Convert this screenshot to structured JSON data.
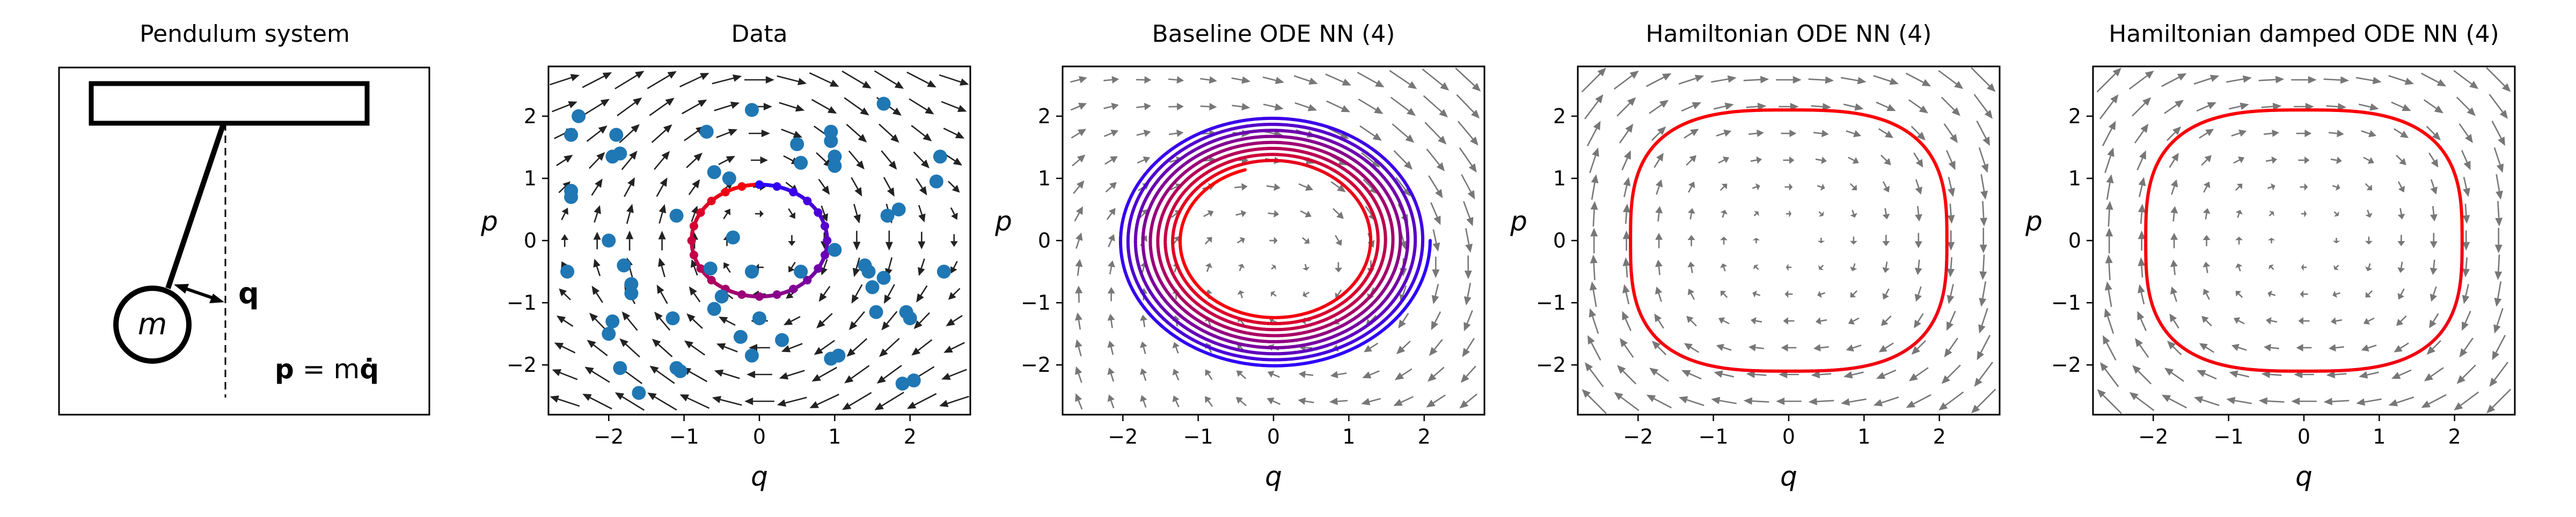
{
  "figure": {
    "pendulum": {
      "title": "Pendulum system",
      "mass_label": "m",
      "q_label": "q",
      "momentum_lhs": "p",
      "momentum_eq": " = m",
      "momentum_qdot": "q̇"
    }
  },
  "colors": {
    "data_points": "#1f77b4",
    "arrows_data": "#222222",
    "arrows_model": "#777777",
    "traj_start": "#2800ff",
    "traj_end": "#ff0000"
  },
  "chart_data": [
    {
      "type": "scatter",
      "title": "Data",
      "xlabel": "q",
      "ylabel": "p",
      "xlim": [
        -2.8,
        2.8
      ],
      "ylim": [
        -2.8,
        2.8
      ],
      "xticks": [
        -2,
        -1,
        0,
        1,
        2
      ],
      "yticks": [
        -2,
        -1,
        0,
        1,
        2
      ],
      "grid": false,
      "vector_field": "pendulum",
      "points": [
        [
          -2.5,
          1.7
        ],
        [
          -2.4,
          2.0
        ],
        [
          -2.5,
          0.8
        ],
        [
          -2.5,
          0.7
        ],
        [
          -1.95,
          1.35
        ],
        [
          -1.9,
          1.7
        ],
        [
          -1.85,
          1.4
        ],
        [
          -2.55,
          -0.5
        ],
        [
          -2.0,
          0.0
        ],
        [
          -1.8,
          -0.4
        ],
        [
          -1.7,
          -0.85
        ],
        [
          -1.7,
          -0.7
        ],
        [
          -1.95,
          -1.3
        ],
        [
          -2.0,
          -1.5
        ],
        [
          -1.85,
          -2.05
        ],
        [
          -1.6,
          -2.45
        ],
        [
          -1.15,
          -1.25
        ],
        [
          -1.1,
          -2.05
        ],
        [
          -1.05,
          -2.1
        ],
        [
          -1.1,
          0.4
        ],
        [
          -0.65,
          -0.45
        ],
        [
          -0.5,
          -0.9
        ],
        [
          -0.6,
          -1.1
        ],
        [
          -0.1,
          -0.5
        ],
        [
          -0.35,
          0.05
        ],
        [
          -0.7,
          1.75
        ],
        [
          -0.6,
          1.1
        ],
        [
          -0.4,
          1.0
        ],
        [
          -0.1,
          2.1
        ],
        [
          -0.25,
          -1.55
        ],
        [
          -0.1,
          -1.85
        ],
        [
          0.0,
          -1.25
        ],
        [
          0.3,
          -1.6
        ],
        [
          0.55,
          -0.5
        ],
        [
          0.5,
          1.55
        ],
        [
          0.55,
          1.25
        ],
        [
          0.95,
          1.6
        ],
        [
          0.95,
          1.75
        ],
        [
          1.0,
          1.2
        ],
        [
          1.0,
          1.35
        ],
        [
          1.0,
          -0.15
        ],
        [
          0.95,
          -1.9
        ],
        [
          1.05,
          -1.85
        ],
        [
          1.4,
          -0.4
        ],
        [
          1.45,
          -0.5
        ],
        [
          1.5,
          -0.75
        ],
        [
          1.55,
          -1.15
        ],
        [
          1.65,
          -0.6
        ],
        [
          1.7,
          0.4
        ],
        [
          1.85,
          0.5
        ],
        [
          1.95,
          -1.15
        ],
        [
          2.0,
          -1.25
        ],
        [
          1.65,
          2.2
        ],
        [
          2.4,
          1.35
        ],
        [
          2.35,
          0.95
        ],
        [
          2.45,
          -0.5
        ],
        [
          2.05,
          -2.25
        ],
        [
          1.9,
          -2.3
        ]
      ],
      "trajectory": {
        "kind": "circle",
        "radius": 0.9,
        "turns": 1
      }
    },
    {
      "type": "line",
      "title": "Baseline ODE NN (4)",
      "xlabel": "q",
      "ylabel": "p",
      "xlim": [
        -2.8,
        2.8
      ],
      "ylim": [
        -2.8,
        2.8
      ],
      "xticks": [
        -2,
        -1,
        0,
        1,
        2
      ],
      "yticks": [
        -2,
        -1,
        0,
        1,
        2
      ],
      "grid": false,
      "vector_field": "baseline",
      "trajectory": {
        "kind": "spiral",
        "r_start": 2.08,
        "r_end": 1.22,
        "turns": 8.7
      }
    },
    {
      "type": "line",
      "title": "Hamiltonian ODE NN (4)",
      "xlabel": "q",
      "ylabel": "p",
      "xlim": [
        -2.8,
        2.8
      ],
      "ylim": [
        -2.8,
        2.8
      ],
      "xticks": [
        -2,
        -1,
        0,
        1,
        2
      ],
      "yticks": [
        -2,
        -1,
        0,
        1,
        2
      ],
      "grid": false,
      "vector_field": "hamiltonian",
      "trajectory": {
        "kind": "superellipse",
        "radius": 2.1,
        "exponent": 3.0,
        "turns": 1
      }
    },
    {
      "type": "line",
      "title": "Hamiltonian damped ODE NN (4)",
      "xlabel": "q",
      "ylabel": "p",
      "xlim": [
        -2.8,
        2.8
      ],
      "ylim": [
        -2.8,
        2.8
      ],
      "xticks": [
        -2,
        -1,
        0,
        1,
        2
      ],
      "yticks": [
        -2,
        -1,
        0,
        1,
        2
      ],
      "grid": false,
      "vector_field": "hamiltonian",
      "trajectory": {
        "kind": "superellipse",
        "radius": 2.1,
        "exponent": 3.0,
        "turns": 1
      }
    }
  ]
}
